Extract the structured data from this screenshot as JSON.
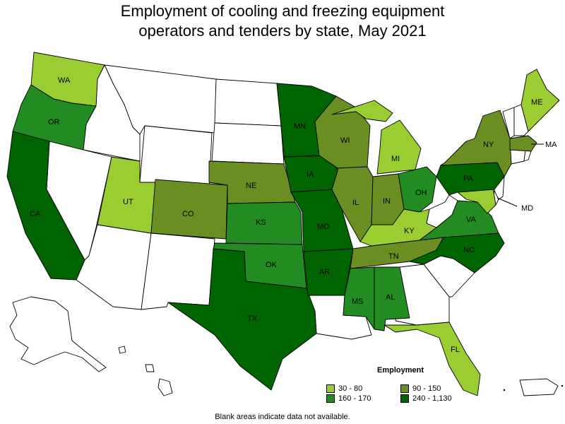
{
  "title": {
    "line1": "Employment of cooling and freezing equipment",
    "line2": "operators and tenders by state, May 2021"
  },
  "legend": {
    "title": "Employment",
    "items": [
      {
        "label": "30 - 80",
        "color": "#9acd32"
      },
      {
        "label": "90 - 150",
        "color": "#6b8e23"
      },
      {
        "label": "160 - 170",
        "color": "#228b22"
      },
      {
        "label": "240 - 1,130",
        "color": "#006400"
      }
    ]
  },
  "colors": {
    "no_data": "#ffffff",
    "c30_80": "#9acd32",
    "c90_150": "#6b8e23",
    "c160_170": "#228b22",
    "c240_1130": "#006400"
  },
  "states": [
    {
      "abbr": "WA",
      "bin": "30 - 80"
    },
    {
      "abbr": "OR",
      "bin": "160 - 170"
    },
    {
      "abbr": "CA",
      "bin": "240 - 1,130"
    },
    {
      "abbr": "UT",
      "bin": "30 - 80"
    },
    {
      "abbr": "CO",
      "bin": "90 - 150"
    },
    {
      "abbr": "NE",
      "bin": "90 - 150"
    },
    {
      "abbr": "KS",
      "bin": "160 - 170"
    },
    {
      "abbr": "OK",
      "bin": "160 - 170"
    },
    {
      "abbr": "TX",
      "bin": "240 - 1,130"
    },
    {
      "abbr": "MN",
      "bin": "240 - 1,130"
    },
    {
      "abbr": "IA",
      "bin": "240 - 1,130"
    },
    {
      "abbr": "MO",
      "bin": "240 - 1,130"
    },
    {
      "abbr": "AR",
      "bin": "240 - 1,130"
    },
    {
      "abbr": "WI",
      "bin": "90 - 150"
    },
    {
      "abbr": "IL",
      "bin": "90 - 150"
    },
    {
      "abbr": "MI",
      "bin": "30 - 80"
    },
    {
      "abbr": "IN",
      "bin": "90 - 150"
    },
    {
      "abbr": "OH",
      "bin": "160 - 170"
    },
    {
      "abbr": "KY",
      "bin": "30 - 80"
    },
    {
      "abbr": "TN",
      "bin": "90 - 150"
    },
    {
      "abbr": "MS",
      "bin": "160 - 170"
    },
    {
      "abbr": "AL",
      "bin": "160 - 170"
    },
    {
      "abbr": "FL",
      "bin": "30 - 80"
    },
    {
      "abbr": "NC",
      "bin": "240 - 1,130"
    },
    {
      "abbr": "VA",
      "bin": "160 - 170"
    },
    {
      "abbr": "PA",
      "bin": "240 - 1,130"
    },
    {
      "abbr": "NY",
      "bin": "90 - 150"
    },
    {
      "abbr": "ME",
      "bin": "30 - 80"
    },
    {
      "abbr": "MA",
      "bin": "90 - 150"
    },
    {
      "abbr": "MD",
      "bin": "30 - 80"
    }
  ],
  "footnote": "Blank areas indicate data not available."
}
